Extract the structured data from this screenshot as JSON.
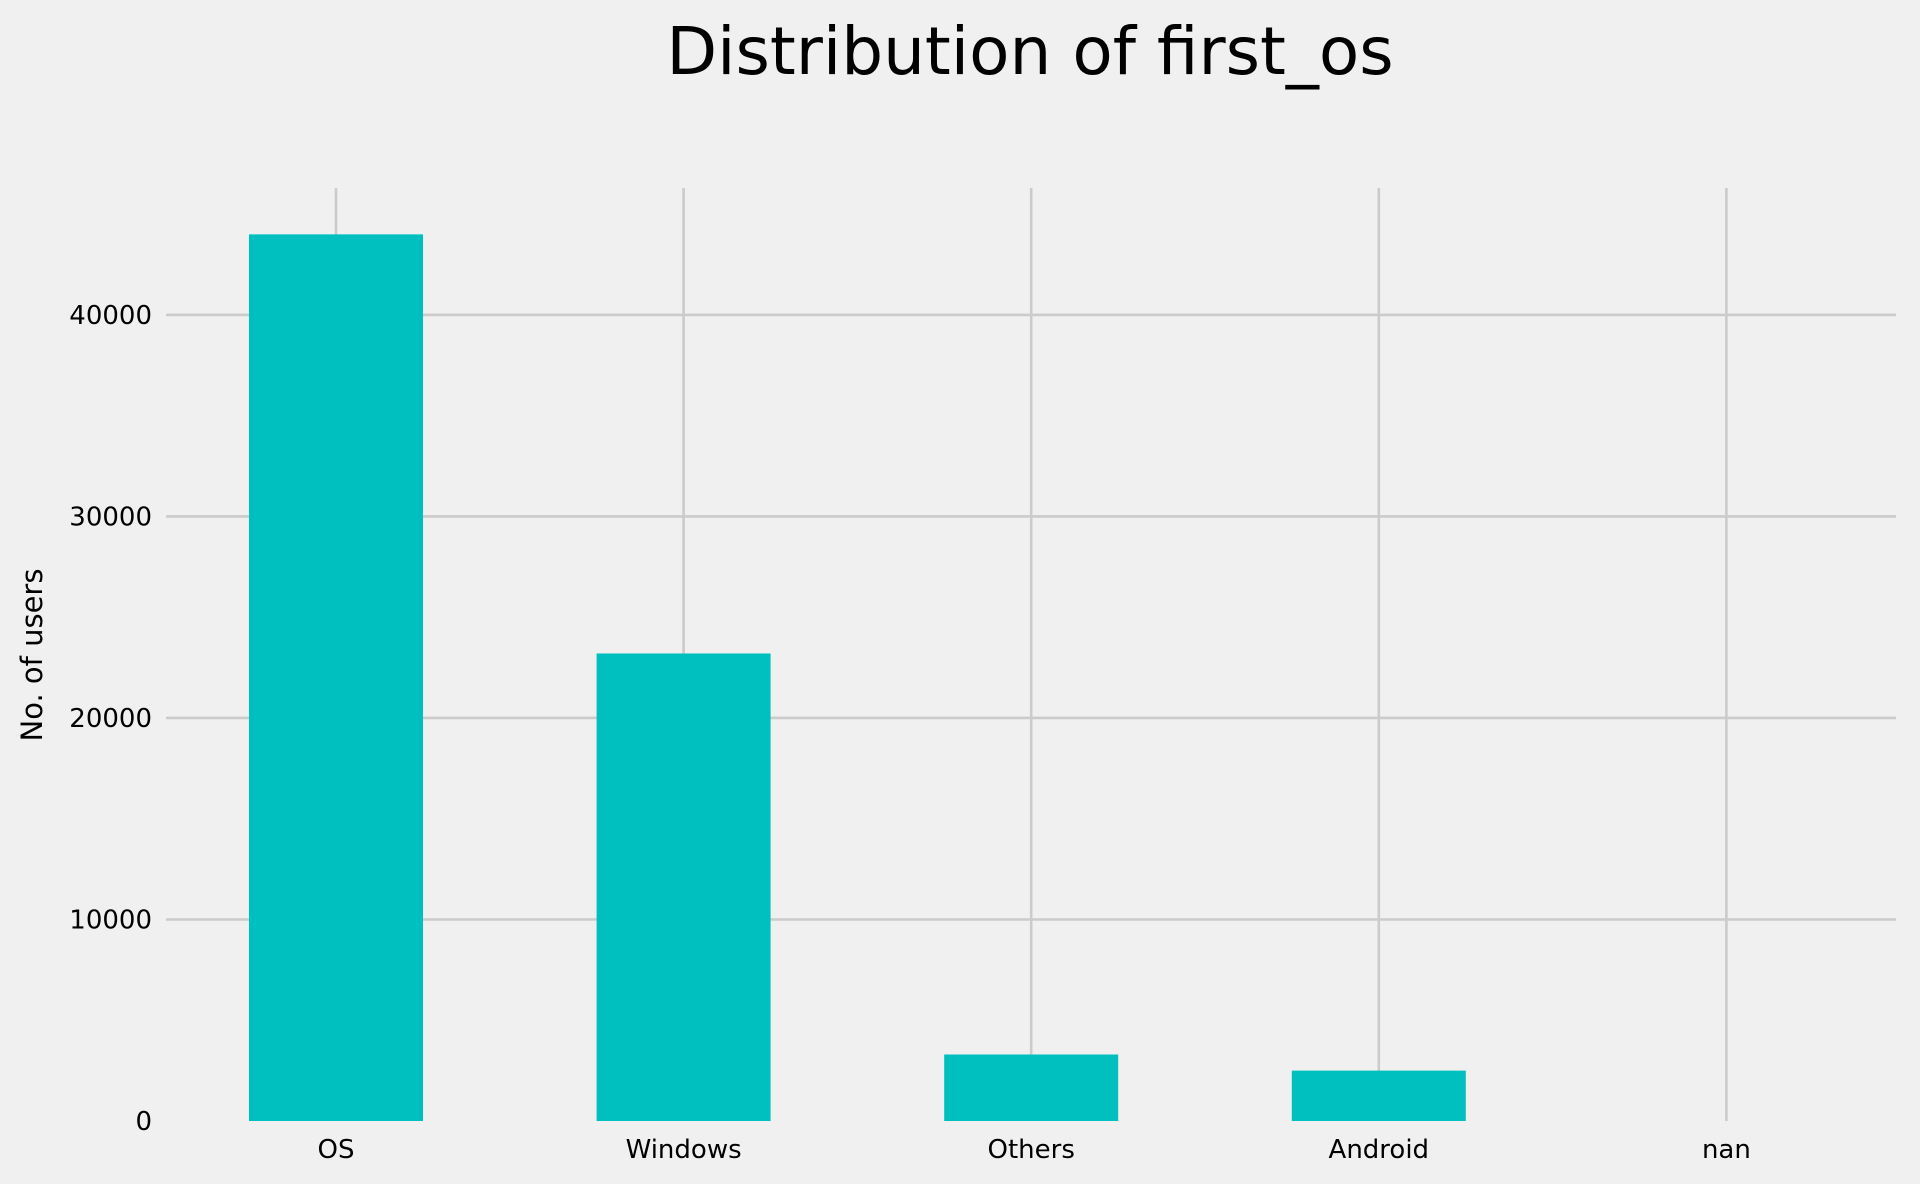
{
  "chart_data": {
    "type": "bar",
    "title": "Distribution of first_os",
    "xlabel": "",
    "ylabel": "No. of users",
    "categories": [
      "OS",
      "Windows",
      "Others",
      "Android",
      "nan"
    ],
    "values": [
      44000,
      23200,
      3300,
      2500,
      0
    ],
    "ylim": [
      0,
      46300
    ],
    "yticks": [
      0,
      10000,
      20000,
      30000,
      40000
    ],
    "grid": true,
    "legend": "none",
    "bar_color": "#00bfbf",
    "background_color": "#f0f0f0",
    "grid_color": "#cbcbcb"
  }
}
